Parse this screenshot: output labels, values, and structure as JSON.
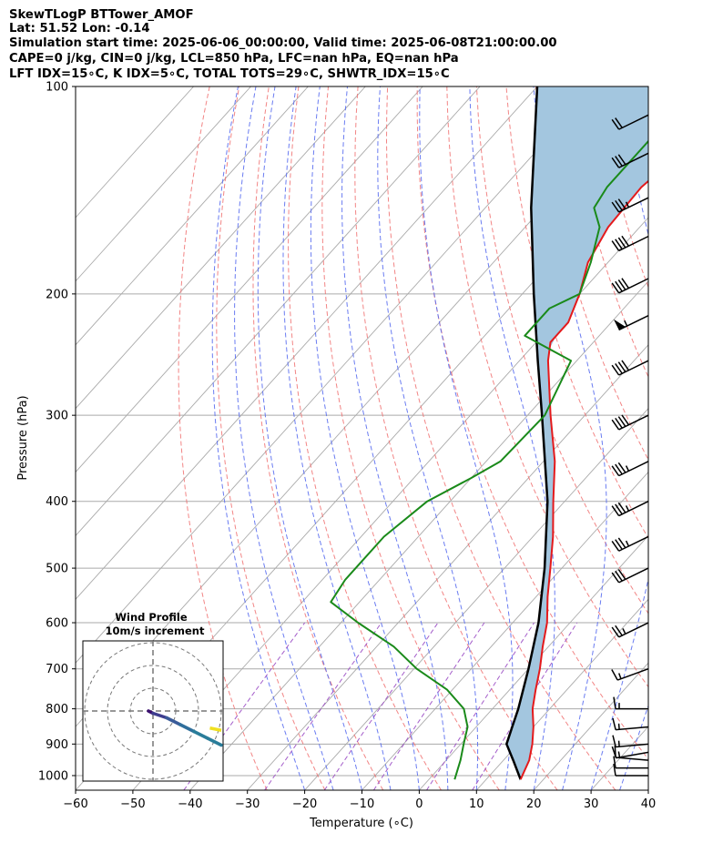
{
  "header": {
    "line1": "SkewTLogP BTTower_AMOF",
    "line2": "Lat: 51.52   Lon: -0.14",
    "line3": "Simulation start time: 2025-06-06_00:00:00, Valid time: 2025-06-08T21:00:00.00",
    "line4": "CAPE=0 j/kg, CIN=0 j/kg, LCL=850 hPa, LFC=nan hPa, EQ=nan hPa",
    "line5": "LFT IDX=15∘C, K IDX=5∘C, TOTAL TOTS=29∘C, SHWTR_IDX=15∘C"
  },
  "chart_data": [
    {
      "type": "line",
      "subtype": "skew-T log-P",
      "xlabel": "Temperature (∘C)",
      "ylabel": "Pressure (hPa)",
      "xlim": [
        -60,
        40
      ],
      "ylim": [
        1050,
        100
      ],
      "y_scale": "log",
      "x_ticks": [
        "−60",
        "−50",
        "−40",
        "−30",
        "−20",
        "−10",
        "0",
        "10",
        "20",
        "30",
        "40"
      ],
      "y_ticks": [
        "100",
        "200",
        "300",
        "400",
        "500",
        "600",
        "700",
        "800",
        "900",
        "1000"
      ],
      "grid": true,
      "colors": {
        "temperature": "#e41a1c",
        "dewpoint": "#1a8a1a",
        "parcel": "#000000",
        "shade": "#a3c6df",
        "dry_adiabats": "#f07070",
        "moist_adiabats": "#5a6ef0",
        "mixing_ratio": "#9a4bc4",
        "isotherms": "#aaaaaa"
      },
      "series": [
        {
          "role": "temperature",
          "p": [
            1013,
            950,
            900,
            850,
            800,
            750,
            700,
            650,
            600,
            550,
            500,
            450,
            400,
            350,
            300,
            250,
            235,
            220,
            200,
            180,
            160,
            140,
            120,
            100
          ],
          "t": [
            16,
            14.5,
            12.5,
            10,
            7,
            4.5,
            2,
            -1,
            -4,
            -8,
            -12,
            -16.5,
            -22,
            -28,
            -36,
            -45,
            -47.5,
            -47.5,
            -50,
            -53.5,
            -55.5,
            -56,
            -54,
            -52
          ]
        },
        {
          "role": "dewpoint",
          "p": [
            1013,
            950,
            900,
            850,
            800,
            750,
            700,
            650,
            600,
            560,
            520,
            500,
            450,
            400,
            370,
            350,
            300,
            250,
            230,
            210,
            200,
            180,
            160,
            150,
            140,
            120,
            100
          ],
          "t": [
            4.5,
            2.5,
            0.5,
            -1.5,
            -5,
            -11,
            -19.5,
            -27,
            -37,
            -45,
            -46,
            -46,
            -46,
            -44,
            -40,
            -37.5,
            -37,
            -41,
            -53,
            -53,
            -50,
            -53,
            -57,
            -61,
            -62,
            -62,
            -60
          ]
        },
        {
          "role": "parcel",
          "p": [
            1013,
            950,
            900,
            850,
            800,
            700,
            600,
            500,
            400,
            300,
            250,
            200,
            150,
            100
          ],
          "t": [
            16,
            11.7,
            8,
            6.3,
            4.5,
            0,
            -5.5,
            -13,
            -23,
            -37.5,
            -46.8,
            -58,
            -72,
            -90
          ]
        }
      ]
    },
    {
      "type": "line",
      "subtype": "hodograph",
      "title": "Wind Profile",
      "subtitle": "10m/s increment",
      "ring_spacing_ms": 10,
      "u": [
        -2,
        0,
        6,
        12,
        18,
        24,
        30
      ],
      "v": [
        0,
        -1,
        -3,
        -6,
        -9,
        -12,
        -15
      ],
      "extra_segment": {
        "u": [
          25,
          30
        ],
        "v": [
          -7.5,
          -8.5
        ],
        "color": "#f0e020"
      }
    }
  ],
  "wind_barbs": [
    {
      "p": 1000,
      "speed_kt": 10,
      "dir_deg": 270
    },
    {
      "p": 975,
      "speed_kt": 10,
      "dir_deg": 270
    },
    {
      "p": 950,
      "speed_kt": 10,
      "dir_deg": 265
    },
    {
      "p": 925,
      "speed_kt": 15,
      "dir_deg": 280
    },
    {
      "p": 900,
      "speed_kt": 15,
      "dir_deg": 275
    },
    {
      "p": 850,
      "speed_kt": 15,
      "dir_deg": 275
    },
    {
      "p": 800,
      "speed_kt": 15,
      "dir_deg": 270
    },
    {
      "p": 700,
      "speed_kt": 15,
      "dir_deg": 290
    },
    {
      "p": 600,
      "speed_kt": 25,
      "dir_deg": 296
    },
    {
      "p": 500,
      "speed_kt": 30,
      "dir_deg": 296
    },
    {
      "p": 450,
      "speed_kt": 35,
      "dir_deg": 296
    },
    {
      "p": 400,
      "speed_kt": 35,
      "dir_deg": 296
    },
    {
      "p": 350,
      "speed_kt": 35,
      "dir_deg": 296
    },
    {
      "p": 300,
      "speed_kt": 40,
      "dir_deg": 296
    },
    {
      "p": 250,
      "speed_kt": 40,
      "dir_deg": 296
    },
    {
      "p": 215,
      "speed_kt": 55,
      "dir_deg": 296
    },
    {
      "p": 190,
      "speed_kt": 40,
      "dir_deg": 296
    },
    {
      "p": 165,
      "speed_kt": 40,
      "dir_deg": 296
    },
    {
      "p": 145,
      "speed_kt": 35,
      "dir_deg": 296
    },
    {
      "p": 125,
      "speed_kt": 30,
      "dir_deg": 296
    },
    {
      "p": 110,
      "speed_kt": 20,
      "dir_deg": 296
    }
  ]
}
